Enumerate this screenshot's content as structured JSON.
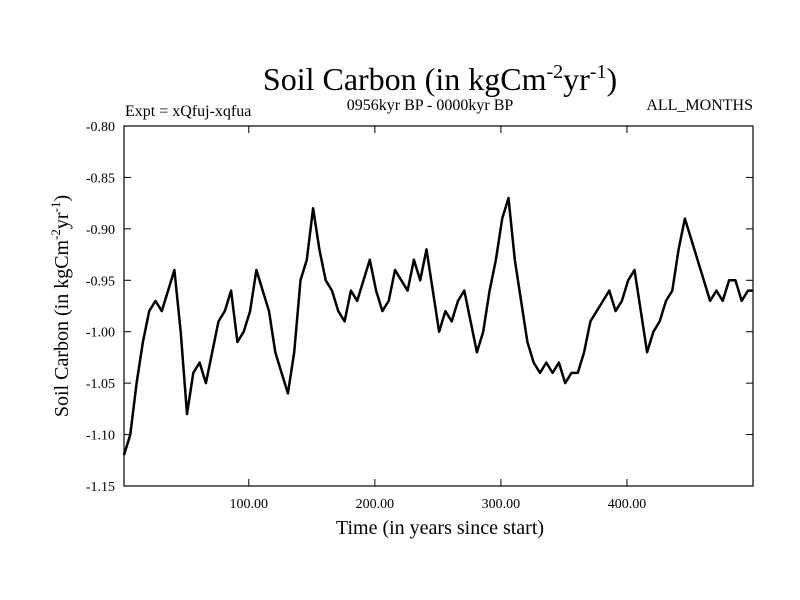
{
  "chart_data": {
    "type": "line",
    "title": "Soil Carbon (in kgCm",
    "title_unit_exp1": "-2",
    "title_unit_mid": "yr",
    "title_unit_exp2": "-1",
    "title_unit_end": ")",
    "subtitle_left": "Expt = xQfuj-xqfua",
    "subtitle_center": "0956kyr BP - 0000kyr BP",
    "subtitle_right": "ALL_MONTHS",
    "xlabel": "Time (in years since start)",
    "ylabel": "Soil Carbon (in kgCm",
    "ylabel_exp1": "-2",
    "ylabel_mid": "yr",
    "ylabel_exp2": "-1",
    "ylabel_end": ")",
    "xlim": [
      1,
      500
    ],
    "ylim": [
      -1.15,
      -0.8
    ],
    "x_ticks": [
      100,
      200,
      300,
      400
    ],
    "x_tick_labels": [
      "100.00",
      "200.00",
      "300.00",
      "400.00"
    ],
    "y_ticks": [
      -1.15,
      -1.1,
      -1.05,
      -1.0,
      -0.95,
      -0.9,
      -0.85,
      -0.8
    ],
    "y_tick_labels": [
      "-1.15",
      "-1.10",
      "-1.05",
      "-1.00",
      "-0.95",
      "-0.90",
      "-0.85",
      "-0.80"
    ],
    "line_color": "#000000",
    "series": [
      {
        "name": "Soil Carbon",
        "x_start": 1,
        "x_step": 5,
        "values": [
          -1.12,
          -1.1,
          -1.05,
          -1.01,
          -0.98,
          -0.97,
          -0.98,
          -0.96,
          -0.94,
          -1.0,
          -1.08,
          -1.04,
          -1.03,
          -1.05,
          -1.02,
          -0.99,
          -0.98,
          -0.96,
          -1.01,
          -1.0,
          -0.98,
          -0.94,
          -0.96,
          -0.98,
          -1.02,
          -1.04,
          -1.06,
          -1.02,
          -0.95,
          -0.93,
          -0.88,
          -0.92,
          -0.95,
          -0.96,
          -0.98,
          -0.99,
          -0.96,
          -0.97,
          -0.95,
          -0.93,
          -0.96,
          -0.98,
          -0.97,
          -0.94,
          -0.95,
          -0.96,
          -0.93,
          -0.95,
          -0.92,
          -0.96,
          -1.0,
          -0.98,
          -0.99,
          -0.97,
          -0.96,
          -0.99,
          -1.02,
          -1.0,
          -0.96,
          -0.93,
          -0.89,
          -0.87,
          -0.93,
          -0.97,
          -1.01,
          -1.03,
          -1.04,
          -1.03,
          -1.04,
          -1.03,
          -1.05,
          -1.04,
          -1.04,
          -1.02,
          -0.99,
          -0.98,
          -0.97,
          -0.96,
          -0.98,
          -0.97,
          -0.95,
          -0.94,
          -0.98,
          -1.02,
          -1.0,
          -0.99,
          -0.97,
          -0.96,
          -0.92,
          -0.89,
          -0.91,
          -0.93,
          -0.95,
          -0.97,
          -0.96,
          -0.97,
          -0.95,
          -0.95,
          -0.97,
          -0.96,
          -0.96
        ]
      }
    ]
  }
}
